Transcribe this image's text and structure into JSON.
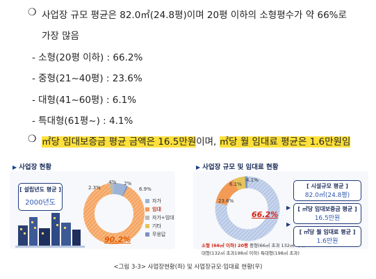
{
  "bullet_glyph": "❍",
  "line1": "사업장 규모 평균은 82.0㎡(24.8평)이며 20평 이하의 소형평수가 약 66%로",
  "line1b": "가장 많음",
  "items": [
    "- 소형(20평 이하) : 66.2%",
    "- 중형(21~40평) : 23.6%",
    "- 대형(41~60평) : 6.1%",
    "- 특대형(61평~) : 4.1%"
  ],
  "line2_a": "㎡당 임대보증금 평균 금액은 16.5만원",
  "line2_b": "이며,",
  "line2_c": "㎡당 월 임대료 평균은 1.6만원임",
  "left_panel": {
    "title": "사업장 현황",
    "box_head": "[ 설립년도 평균 ]",
    "box_value": "2000년도",
    "pct_labels": {
      "a": "2.3%",
      "b": ".4%",
      "c": ".2%",
      "d": "6.9%",
      "main": "90.2%"
    },
    "legend": [
      "자가",
      "임대",
      "자가+임대",
      "기타",
      "무응답"
    ],
    "colors": {
      "self": "#9bb3d6",
      "rent": "#f39a55",
      "mixed": "#b9b9b9",
      "other": "#e6c45a",
      "none": "#7a92c2"
    }
  },
  "right_panel": {
    "title": "사업장 규모 및 임대료 현황",
    "pct_labels": {
      "a": "6.1%",
      "b": "4.1%",
      "c": "23.6%",
      "main": "66.2%"
    },
    "note1a": "소형 (66㎡ 이하)",
    "note1b": "20평",
    "note1c": "중형(66㎡ 초과 132㎡ 이하)",
    "note2": "대형(132㎡ 초과198㎡ 이하)",
    "note2b": "특대형(198㎡ 초과)",
    "box1_head": "[ 시설규모 평균 ]",
    "box1_value": "82.0㎡(24.8평)",
    "box2_head": "[ ㎡당 임대보증금 평균 ]",
    "box2_value": "16.5만원",
    "box3_head": "[ ㎡당 월 임대료 평균 ]",
    "box3_value": "1.6만원",
    "colors": {
      "small": "#9bb3d6",
      "mid": "#f39a55",
      "large": "#e6c45a",
      "xl": "#7a92c2"
    }
  },
  "caption": "<그림 3-3> 사업장현황(좌) 및 사업장규모·임대료 현황(우)"
}
